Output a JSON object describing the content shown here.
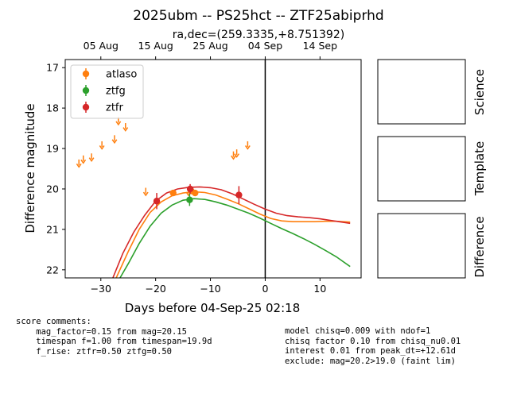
{
  "header": {
    "title": "2025ubm -- PS25hct -- ZTF25abiprhd",
    "subtitle": "ra,dec=(259.3335,+8.751392)"
  },
  "chart_data": {
    "type": "scatter",
    "xlabel": "Days before 04-Sep-25 02:18",
    "ylabel": "Difference magnitude",
    "xlim": [
      -36.5,
      17.5
    ],
    "ylim": [
      22.2,
      16.8
    ],
    "y_inverted": true,
    "x_ticks": [
      -30,
      -20,
      -10,
      0,
      10
    ],
    "x_tick_labels": [
      "−30",
      "−20",
      "−10",
      "0",
      "10"
    ],
    "y_ticks": [
      17,
      18,
      19,
      20,
      21,
      22
    ],
    "y_tick_labels": [
      "17",
      "18",
      "19",
      "20",
      "21",
      "22"
    ],
    "top_axis_dates": [
      {
        "label": "05 Aug",
        "x": -30
      },
      {
        "label": "15 Aug",
        "x": -20
      },
      {
        "label": "25 Aug",
        "x": -10
      },
      {
        "label": "04 Sep",
        "x": 0
      },
      {
        "label": "14 Sep",
        "x": 10
      }
    ],
    "reference_line_x": 0,
    "legend": {
      "placement": "top-left",
      "entries": [
        "atlaso",
        "ztfg",
        "ztfr"
      ]
    },
    "colors": {
      "atlaso": "#ff7f0e",
      "ztfg": "#2ca02c",
      "ztfr": "#d62728"
    },
    "series": [
      {
        "name": "atlaso",
        "detections": [
          {
            "x": -16.8,
            "y": 20.1,
            "err": 0.07
          },
          {
            "x": -13.5,
            "y": 20.05,
            "err": 0.07
          },
          {
            "x": -12.8,
            "y": 20.1,
            "err": 0.07
          }
        ],
        "upper_limits": [
          {
            "x": -34.0,
            "y": 19.35
          },
          {
            "x": -33.2,
            "y": 19.25
          },
          {
            "x": -31.7,
            "y": 19.2
          },
          {
            "x": -29.8,
            "y": 18.9
          },
          {
            "x": -27.5,
            "y": 18.75
          },
          {
            "x": -26.8,
            "y": 18.3
          },
          {
            "x": -25.5,
            "y": 18.45
          },
          {
            "x": -21.8,
            "y": 20.05
          },
          {
            "x": -14.0,
            "y": 20.05
          },
          {
            "x": -5.8,
            "y": 19.15
          },
          {
            "x": -5.2,
            "y": 19.1
          },
          {
            "x": -3.2,
            "y": 18.9
          }
        ],
        "model": [
          [
            -27.2,
            22.2
          ],
          [
            -25,
            21.55
          ],
          [
            -23,
            21.0
          ],
          [
            -21,
            20.58
          ],
          [
            -19,
            20.32
          ],
          [
            -17,
            20.17
          ],
          [
            -15,
            20.1
          ],
          [
            -13,
            20.07
          ],
          [
            -11,
            20.09
          ],
          [
            -9,
            20.15
          ],
          [
            -7,
            20.25
          ],
          [
            -5,
            20.36
          ],
          [
            -3,
            20.49
          ],
          [
            -1,
            20.62
          ],
          [
            1,
            20.73
          ],
          [
            3,
            20.79
          ],
          [
            5,
            20.81
          ],
          [
            7,
            20.81
          ],
          [
            9,
            20.81
          ],
          [
            11,
            20.8
          ],
          [
            13,
            20.8
          ],
          [
            15.5,
            20.82
          ]
        ]
      },
      {
        "name": "ztfg",
        "detections": [
          {
            "x": -13.8,
            "y": 20.27,
            "err": 0.15
          }
        ],
        "upper_limits": [],
        "model": [
          [
            -26.5,
            22.2
          ],
          [
            -25,
            21.85
          ],
          [
            -23,
            21.35
          ],
          [
            -21,
            20.92
          ],
          [
            -19,
            20.6
          ],
          [
            -17,
            20.4
          ],
          [
            -15,
            20.28
          ],
          [
            -13,
            20.24
          ],
          [
            -11,
            20.26
          ],
          [
            -9,
            20.32
          ],
          [
            -7,
            20.4
          ],
          [
            -5,
            20.5
          ],
          [
            -3,
            20.6
          ],
          [
            -1,
            20.72
          ],
          [
            1,
            20.85
          ],
          [
            3,
            20.98
          ],
          [
            5,
            21.1
          ],
          [
            7,
            21.23
          ],
          [
            9,
            21.37
          ],
          [
            11,
            21.52
          ],
          [
            13,
            21.68
          ],
          [
            15.5,
            21.92
          ]
        ]
      },
      {
        "name": "ztfr",
        "detections": [
          {
            "x": -19.8,
            "y": 20.3,
            "err": 0.2
          },
          {
            "x": -13.7,
            "y": 20.0,
            "err": 0.12
          },
          {
            "x": -4.8,
            "y": 20.15,
            "err": 0.22
          }
        ],
        "upper_limits": [],
        "model": [
          [
            -27.8,
            22.2
          ],
          [
            -26,
            21.6
          ],
          [
            -24,
            21.07
          ],
          [
            -22,
            20.65
          ],
          [
            -20,
            20.3
          ],
          [
            -18,
            20.1
          ],
          [
            -16,
            20.0
          ],
          [
            -14,
            19.96
          ],
          [
            -12,
            19.95
          ],
          [
            -10,
            19.97
          ],
          [
            -8,
            20.02
          ],
          [
            -6,
            20.12
          ],
          [
            -4,
            20.25
          ],
          [
            -2,
            20.38
          ],
          [
            0,
            20.5
          ],
          [
            2,
            20.6
          ],
          [
            4,
            20.66
          ],
          [
            6,
            20.69
          ],
          [
            8,
            20.71
          ],
          [
            10,
            20.74
          ],
          [
            12,
            20.78
          ],
          [
            15.5,
            20.85
          ]
        ]
      }
    ]
  },
  "side_panels": [
    {
      "label": "Science"
    },
    {
      "label": "Template"
    },
    {
      "label": "Difference"
    }
  ],
  "comments": {
    "left": "score comments:\n    mag_factor=0.15 from mag=20.15\n    timespan f=1.00 from timespan=19.9d\n    f_rise: ztfr=0.50 ztfg=0.50",
    "right": "model chisq=0.009 with ndof=1\nchisq factor 0.10 from chisq_nu0.01\ninterest 0.01 from peak_dt=+12.61d\nexclude: mag=20.2>19.0 (faint lim)"
  }
}
